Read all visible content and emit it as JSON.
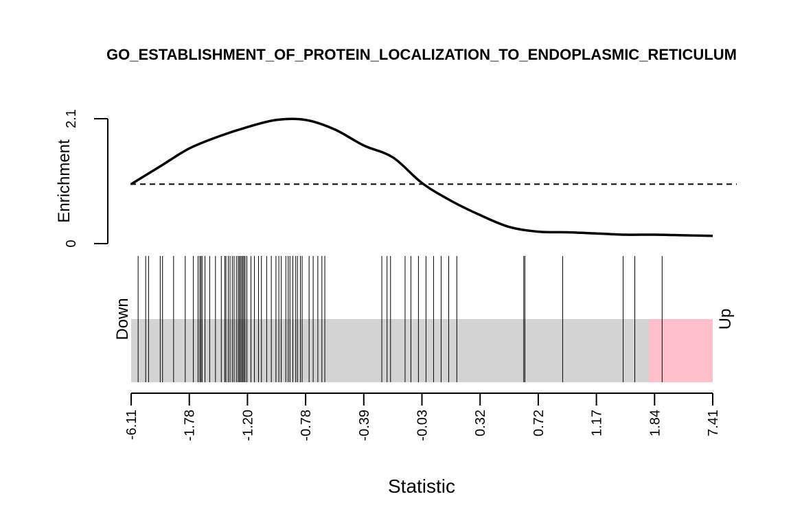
{
  "chart_data": {
    "type": "barcode-enrichment",
    "title": "GO_ESTABLISHMENT_OF_PROTEIN_LOCALIZATION_TO_ENDOPLASMIC_RETICULUM",
    "xlabel": "Statistic",
    "ylabel": "Enrichment",
    "ylim": [
      0,
      2.1
    ],
    "y_ticks": [
      "0",
      "2.1"
    ],
    "baseline": 1,
    "down_label": "Down",
    "up_label": "Up",
    "x_ticks": [
      "-6.11",
      "-1.78",
      "-1.20",
      "-0.78",
      "-0.39",
      "-0.03",
      "0.32",
      "0.72",
      "1.17",
      "1.84",
      "7.41"
    ],
    "x_rank_range": [
      0,
      10
    ],
    "down_region": [
      0,
      1
    ],
    "up_region": [
      8.9,
      10
    ],
    "enrichment_curve": {
      "x": [
        0,
        0.5,
        1,
        1.5,
        2,
        2.5,
        3,
        3.5,
        4,
        4.5,
        5,
        5.5,
        6,
        6.5,
        7,
        7.5,
        8,
        8.5,
        9,
        9.5,
        10
      ],
      "y": [
        1.0,
        1.3,
        1.6,
        1.8,
        1.96,
        2.08,
        2.08,
        1.92,
        1.65,
        1.45,
        1.02,
        0.72,
        0.48,
        0.28,
        0.2,
        0.19,
        0.17,
        0.15,
        0.15,
        0.14,
        0.13
      ]
    },
    "barcode_ranks": [
      0.12,
      0.25,
      0.3,
      0.5,
      0.54,
      0.73,
      0.93,
      1.07,
      1.15,
      1.18,
      1.2,
      1.22,
      1.27,
      1.35,
      1.45,
      1.55,
      1.61,
      1.63,
      1.67,
      1.7,
      1.74,
      1.77,
      1.81,
      1.84,
      1.86,
      1.88,
      1.9,
      1.92,
      1.94,
      1.96,
      1.99,
      2.06,
      2.12,
      2.19,
      2.24,
      2.33,
      2.41,
      2.49,
      2.54,
      2.58,
      2.66,
      2.7,
      2.73,
      2.78,
      2.83,
      2.86,
      2.91,
      2.94,
      3.06,
      3.13,
      3.21,
      3.28,
      3.33,
      4.31,
      4.4,
      4.46,
      4.71,
      4.81,
      4.94,
      5.07,
      5.2,
      5.33,
      5.46,
      5.6,
      6.75,
      6.77,
      7.42,
      8.46,
      8.66,
      9.13
    ]
  }
}
